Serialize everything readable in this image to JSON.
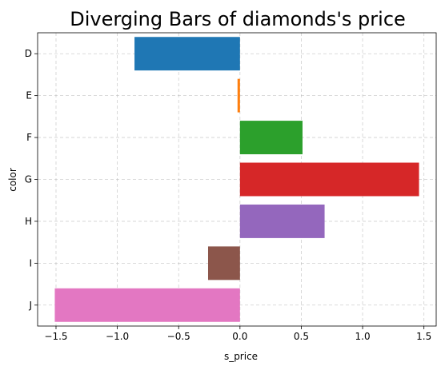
{
  "chart_data": {
    "type": "bar",
    "orientation": "horizontal",
    "title": "Diverging Bars of diamonds's price",
    "xlabel": "s_price",
    "ylabel": "color",
    "categories": [
      "D",
      "E",
      "F",
      "G",
      "H",
      "I",
      "J"
    ],
    "values": [
      -0.86,
      -0.02,
      0.51,
      1.46,
      0.69,
      -0.26,
      -1.51
    ],
    "colors": [
      "#1f77b4",
      "#ff7f0e",
      "#2ca02c",
      "#d62728",
      "#9467bd",
      "#8c564b",
      "#e377c2"
    ],
    "xlim": [
      -1.65,
      1.6
    ],
    "xticks": [
      -1.5,
      -1.0,
      -0.5,
      0.0,
      0.5,
      1.0,
      1.5
    ],
    "xtick_labels": [
      "−1.5",
      "−1.0",
      "−0.5",
      "0.0",
      "0.5",
      "1.0",
      "1.5"
    ],
    "grid": true
  }
}
